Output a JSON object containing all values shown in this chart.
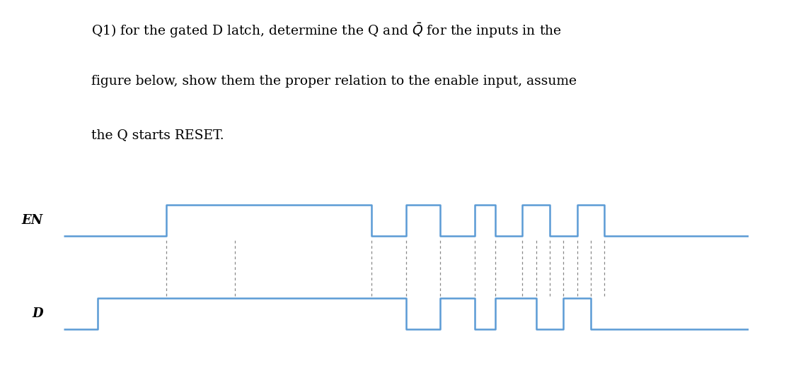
{
  "background_color": "#ffffff",
  "waveform_area_bg": "#d8d8d8",
  "wave_color": "#5b9bd5",
  "dashed_color": "#888888",
  "label_color": "#000000",
  "en_label": "EN",
  "d_label": "D",
  "text_lines": [
    "Q1) for the gated D latch, determine the Q and $\\bar{Q}$ for the inputs in the",
    "figure below, show them the proper relation to the enable input, assume",
    "the Q starts RESET."
  ],
  "text_fontsize": 13.5,
  "en_x": [
    0,
    1.5,
    1.5,
    4.5,
    4.5,
    5.0,
    5.0,
    5.5,
    5.5,
    6.0,
    6.0,
    6.3,
    6.3,
    6.7,
    6.7,
    7.1,
    7.1,
    7.5,
    7.5,
    7.9,
    7.9,
    10.0
  ],
  "en_y": [
    0,
    0,
    1,
    1,
    0,
    0,
    1,
    1,
    0,
    0,
    1,
    1,
    0,
    0,
    1,
    1,
    0,
    0,
    1,
    1,
    0,
    0
  ],
  "d_x": [
    0,
    0.5,
    0.5,
    5.0,
    5.0,
    5.5,
    5.5,
    6.0,
    6.0,
    6.3,
    6.3,
    6.9,
    6.9,
    7.3,
    7.3,
    7.7,
    7.7,
    10.0
  ],
  "d_y": [
    0,
    0,
    1,
    1,
    0,
    0,
    1,
    1,
    0,
    0,
    1,
    1,
    0,
    0,
    1,
    1,
    0,
    0
  ],
  "dashed_x": [
    1.5,
    2.5,
    4.5,
    5.0,
    5.5,
    6.0,
    6.3,
    6.7,
    6.9,
    7.1,
    7.3,
    7.5,
    7.7,
    7.9
  ],
  "xlim": [
    0,
    10.0
  ],
  "en_base": 2.3,
  "en_high": 3.0,
  "d_base": 0.2,
  "d_high": 0.9,
  "ylim": [
    -0.2,
    3.5
  ]
}
